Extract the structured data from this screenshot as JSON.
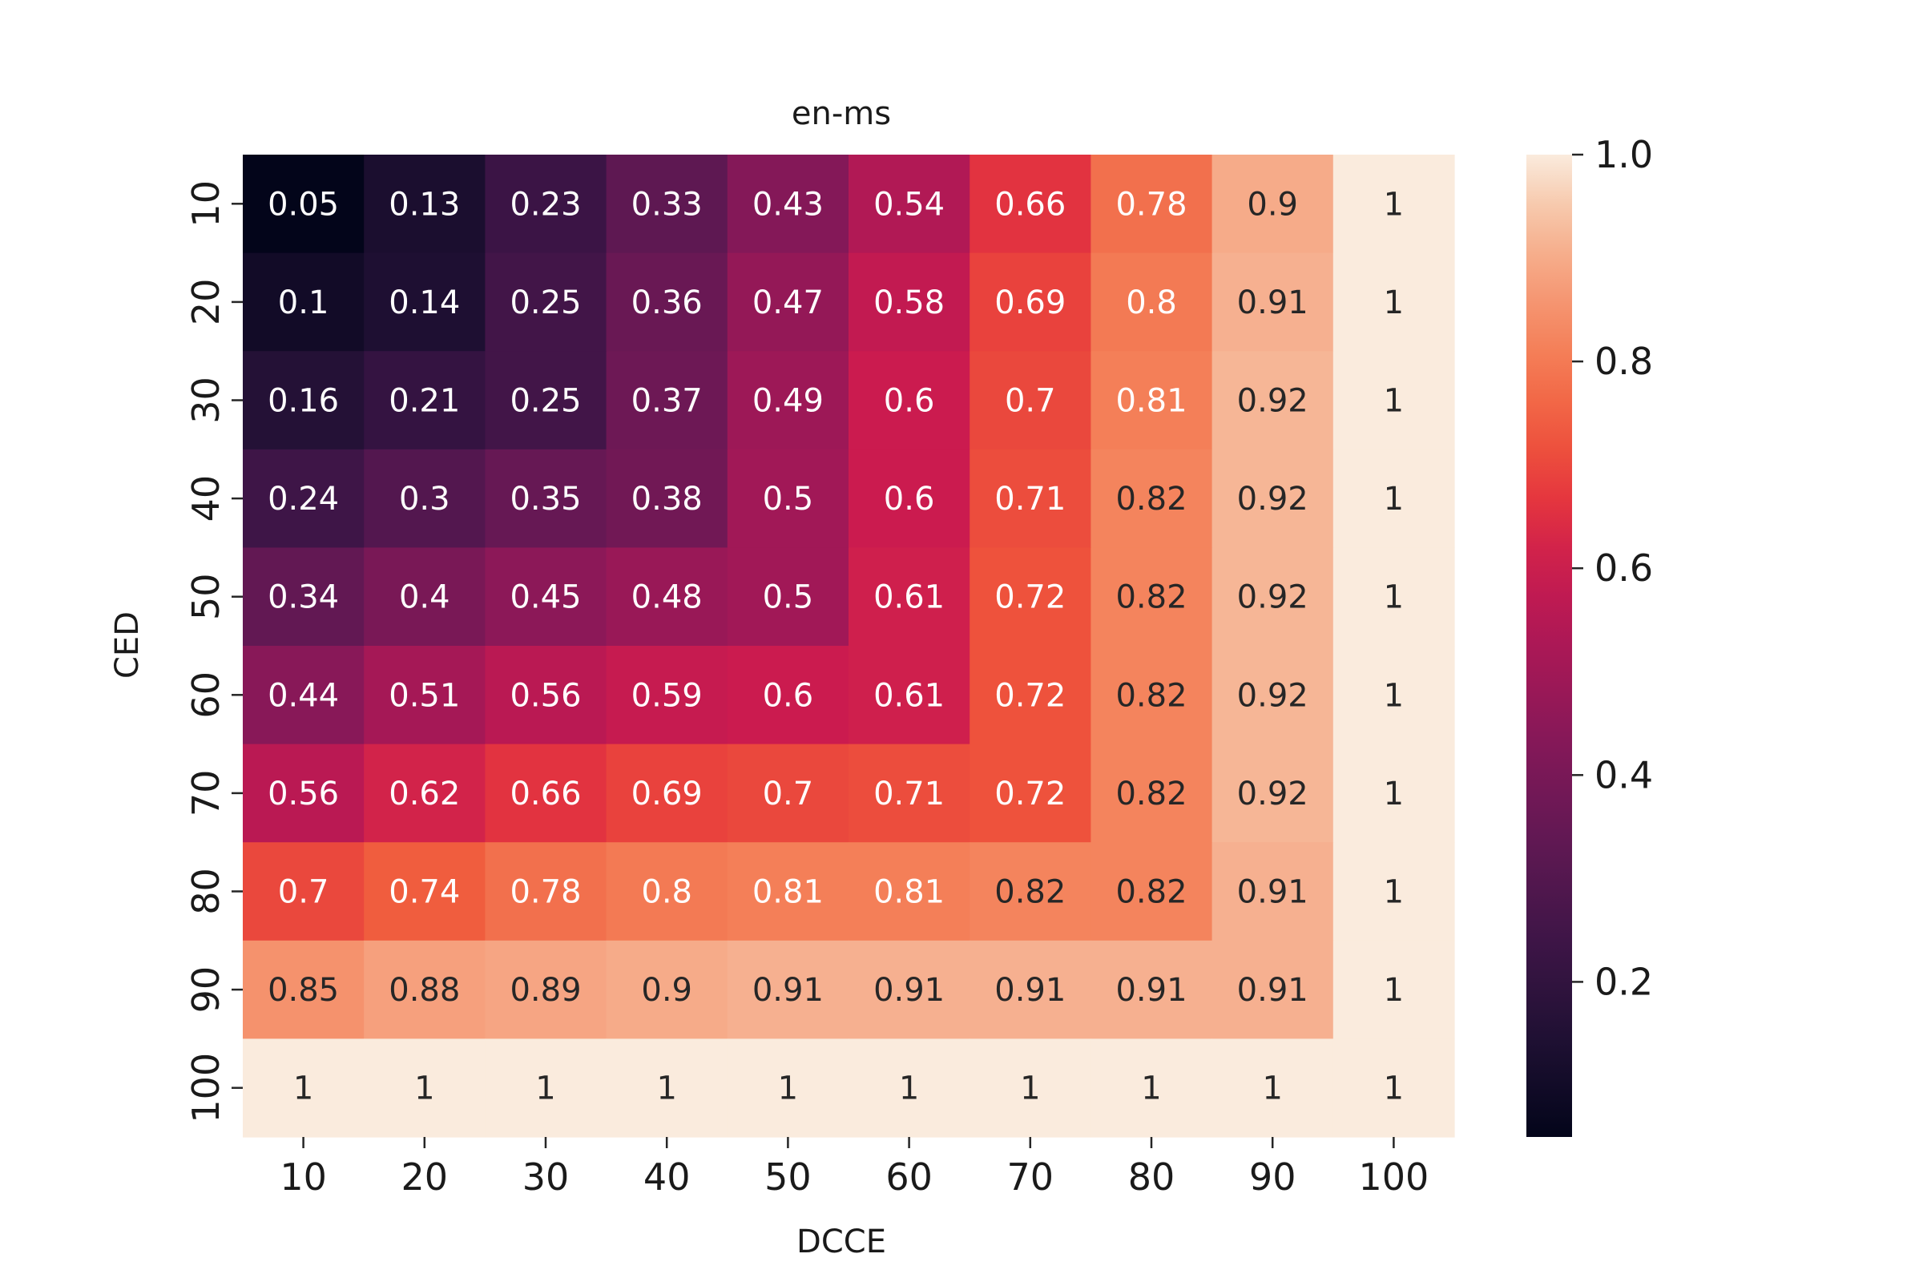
{
  "chart_data": {
    "type": "heatmap",
    "title": "en-ms",
    "xlabel": "DCCE",
    "ylabel": "CED",
    "x_categories": [
      "10",
      "20",
      "30",
      "40",
      "50",
      "60",
      "70",
      "80",
      "90",
      "100"
    ],
    "y_categories": [
      "10",
      "20",
      "30",
      "40",
      "50",
      "60",
      "70",
      "80",
      "90",
      "100"
    ],
    "values": [
      [
        0.05,
        0.13,
        0.23,
        0.33,
        0.43,
        0.54,
        0.66,
        0.78,
        0.9,
        1
      ],
      [
        0.1,
        0.14,
        0.25,
        0.36,
        0.47,
        0.58,
        0.69,
        0.8,
        0.91,
        1
      ],
      [
        0.16,
        0.21,
        0.25,
        0.37,
        0.49,
        0.6,
        0.7,
        0.81,
        0.92,
        1
      ],
      [
        0.24,
        0.3,
        0.35,
        0.38,
        0.5,
        0.6,
        0.71,
        0.82,
        0.92,
        1
      ],
      [
        0.34,
        0.4,
        0.45,
        0.48,
        0.5,
        0.61,
        0.72,
        0.82,
        0.92,
        1
      ],
      [
        0.44,
        0.51,
        0.56,
        0.59,
        0.6,
        0.61,
        0.72,
        0.82,
        0.92,
        1
      ],
      [
        0.56,
        0.62,
        0.66,
        0.69,
        0.7,
        0.71,
        0.72,
        0.82,
        0.92,
        1
      ],
      [
        0.7,
        0.74,
        0.78,
        0.8,
        0.81,
        0.81,
        0.82,
        0.82,
        0.91,
        1
      ],
      [
        0.85,
        0.88,
        0.89,
        0.9,
        0.91,
        0.91,
        0.91,
        0.91,
        0.91,
        1
      ],
      [
        1,
        1,
        1,
        1,
        1,
        1,
        1,
        1,
        1,
        1
      ]
    ],
    "colorbar": {
      "range": [
        0.05,
        1.0
      ],
      "ticks": [
        "0.2",
        "0.4",
        "0.6",
        "0.8",
        "1.0"
      ],
      "colormap": "rocket"
    },
    "grid": false
  }
}
